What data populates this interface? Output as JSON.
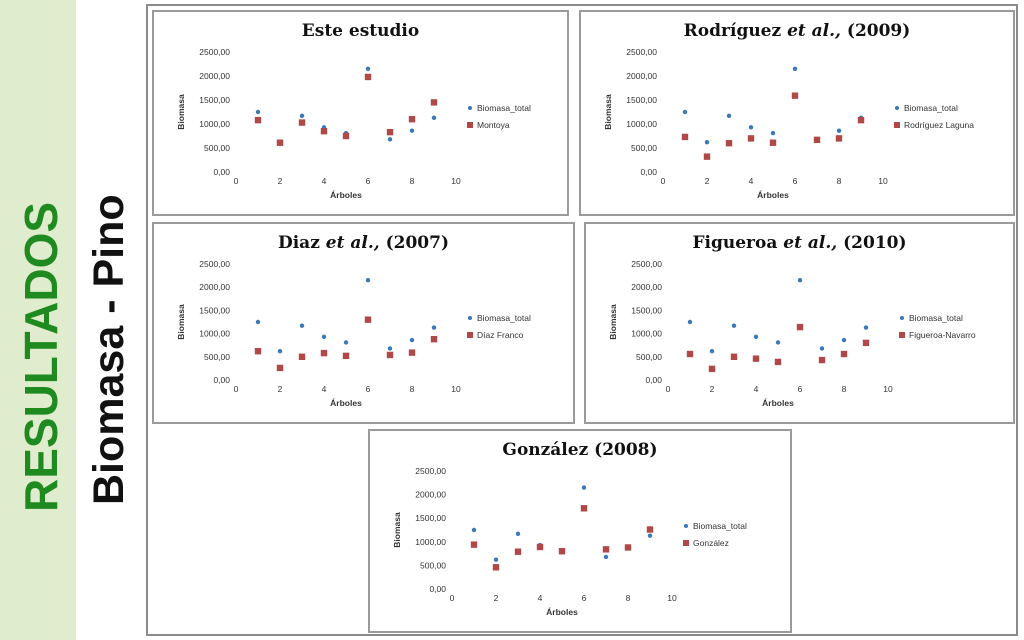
{
  "side": {
    "title_main": "RESULTADOS",
    "title_sub": "Biomasa - Pino"
  },
  "colors": {
    "total": "#3a78b8",
    "study": "#b04848",
    "band": "#dfeccd",
    "title_main": "#1f8a1f"
  },
  "chart_data": [
    {
      "type": "scatter",
      "title_parts": [
        {
          "text": "Este estudio",
          "italic": false
        }
      ],
      "xlabel": "Árboles",
      "ylabel": "Biomasa",
      "xlim": [
        0,
        10
      ],
      "ylim": [
        0,
        2500
      ],
      "xticks": [
        "0",
        "2",
        "4",
        "6",
        "8",
        "10"
      ],
      "yticks": [
        "0,00",
        "500,00",
        "1000,00",
        "1500,00",
        "2000,00",
        "2500,00"
      ],
      "x": [
        1,
        2,
        3,
        4,
        5,
        6,
        7,
        8,
        9
      ],
      "series": [
        {
          "name": "Biomasa_total",
          "values": [
            1250,
            620,
            1170,
            930,
            810,
            2150,
            680,
            860,
            1130
          ]
        },
        {
          "name": "Montoya",
          "values": [
            1080,
            610,
            1030,
            850,
            750,
            1980,
            830,
            1100,
            1450
          ]
        }
      ]
    },
    {
      "type": "scatter",
      "title_parts": [
        {
          "text": "Rodríguez ",
          "italic": false
        },
        {
          "text": "et al.,",
          "italic": true
        },
        {
          "text": " (2009)",
          "italic": false
        }
      ],
      "xlabel": "Árboles",
      "ylabel": "Biomasa",
      "xlim": [
        0,
        10
      ],
      "ylim": [
        0,
        2500
      ],
      "xticks": [
        "0",
        "2",
        "4",
        "6",
        "8",
        "10"
      ],
      "yticks": [
        "0,00",
        "500,00",
        "1000,00",
        "1500,00",
        "2000,00",
        "2500,00"
      ],
      "x": [
        1,
        2,
        3,
        4,
        5,
        6,
        7,
        8,
        9
      ],
      "series": [
        {
          "name": "Biomasa_total",
          "values": [
            1250,
            620,
            1170,
            930,
            810,
            2150,
            680,
            860,
            1130
          ]
        },
        {
          "name": "Rodríguez Laguna",
          "values": [
            730,
            320,
            600,
            700,
            610,
            1590,
            670,
            700,
            1080
          ]
        }
      ]
    },
    {
      "type": "scatter",
      "title_parts": [
        {
          "text": "Diaz ",
          "italic": false
        },
        {
          "text": "et al.,",
          "italic": true
        },
        {
          "text": " (2007)",
          "italic": false
        }
      ],
      "xlabel": "Árboles",
      "ylabel": "Biomasa",
      "xlim": [
        0,
        10
      ],
      "ylim": [
        0,
        2500
      ],
      "xticks": [
        "0",
        "2",
        "4",
        "6",
        "8",
        "10"
      ],
      "yticks": [
        "0,00",
        "500,00",
        "1000,00",
        "1500,00",
        "2000,00",
        "2500,00"
      ],
      "x": [
        1,
        2,
        3,
        4,
        5,
        6,
        7,
        8,
        9
      ],
      "series": [
        {
          "name": "Biomasa_total",
          "values": [
            1250,
            620,
            1170,
            930,
            810,
            2150,
            680,
            860,
            1130
          ]
        },
        {
          "name": "Díaz Franco",
          "values": [
            620,
            260,
            500,
            580,
            520,
            1300,
            540,
            590,
            880
          ]
        }
      ]
    },
    {
      "type": "scatter",
      "title_parts": [
        {
          "text": "Figueroa ",
          "italic": false
        },
        {
          "text": "et al.,",
          "italic": true
        },
        {
          "text": " (2010)",
          "italic": false
        }
      ],
      "xlabel": "Árboles",
      "ylabel": "Biomasa",
      "xlim": [
        0,
        10
      ],
      "ylim": [
        0,
        2500
      ],
      "xticks": [
        "0",
        "2",
        "4",
        "6",
        "8",
        "10"
      ],
      "yticks": [
        "0,00",
        "500,00",
        "1000,00",
        "1500,00",
        "2000,00",
        "2500,00"
      ],
      "x": [
        1,
        2,
        3,
        4,
        5,
        6,
        7,
        8,
        9
      ],
      "series": [
        {
          "name": "Biomasa_total",
          "values": [
            1250,
            620,
            1170,
            930,
            810,
            2150,
            680,
            860,
            1130
          ]
        },
        {
          "name": "Figueroa-Navarro",
          "values": [
            560,
            240,
            500,
            460,
            390,
            1140,
            430,
            560,
            800
          ]
        }
      ]
    },
    {
      "type": "scatter",
      "title_parts": [
        {
          "text": "González (2008)",
          "italic": false
        }
      ],
      "xlabel": "Árboles",
      "ylabel": "Biomasa",
      "xlim": [
        0,
        10
      ],
      "ylim": [
        0,
        2500
      ],
      "xticks": [
        "0",
        "2",
        "4",
        "6",
        "8",
        "10"
      ],
      "yticks": [
        "0,00",
        "500,00",
        "1000,00",
        "1500,00",
        "2000,00",
        "2500,00"
      ],
      "x": [
        1,
        2,
        3,
        4,
        5,
        6,
        7,
        8,
        9
      ],
      "series": [
        {
          "name": "Biomasa_total",
          "values": [
            1250,
            620,
            1170,
            930,
            810,
            2150,
            680,
            860,
            1130
          ]
        },
        {
          "name": "González",
          "values": [
            940,
            460,
            790,
            890,
            800,
            1710,
            840,
            880,
            1260
          ]
        }
      ]
    }
  ]
}
